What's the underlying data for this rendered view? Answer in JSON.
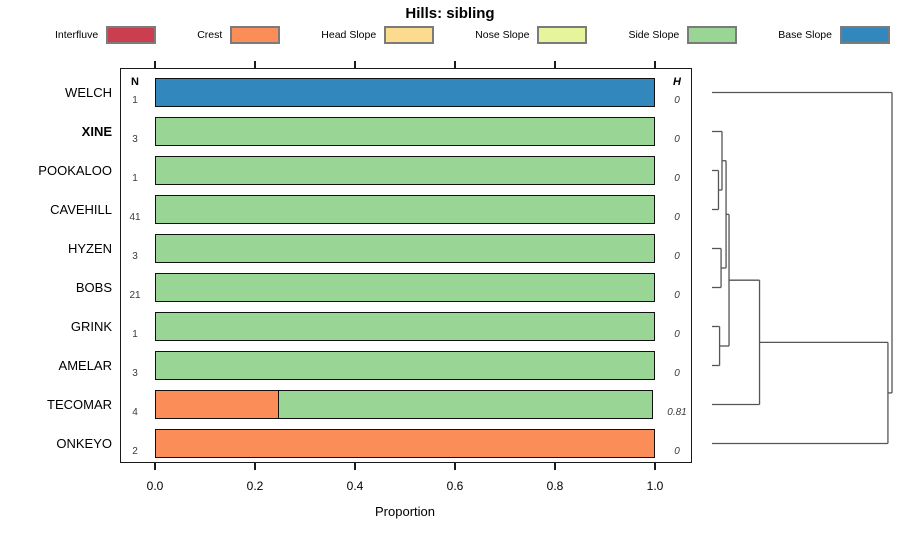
{
  "title": "Hills: sibling",
  "legend": {
    "items": [
      {
        "label": "Interfluve",
        "color": "#CB3E4F"
      },
      {
        "label": "Crest",
        "color": "#FB8D58"
      },
      {
        "label": "Head Slope",
        "color": "#FBDC8E"
      },
      {
        "label": "Nose Slope",
        "color": "#E6F59B"
      },
      {
        "label": "Side Slope",
        "color": "#99D594"
      },
      {
        "label": "Base Slope",
        "color": "#3288BD"
      }
    ]
  },
  "columns": {
    "n_header": "N",
    "h_header": "H"
  },
  "axis": {
    "xlabel": "Proportion",
    "ticks": [
      "0.0",
      "0.2",
      "0.4",
      "0.6",
      "0.8",
      "1.0"
    ],
    "tick_values": [
      0.0,
      0.2,
      0.4,
      0.6,
      0.8,
      1.0
    ],
    "xlim": [
      0.0,
      1.0
    ]
  },
  "rows": [
    {
      "label": "WELCH",
      "bold": false,
      "n": "1",
      "h": "0",
      "segments": [
        {
          "class": "Base Slope",
          "value": 1.0
        }
      ]
    },
    {
      "label": "XINE",
      "bold": true,
      "n": "3",
      "h": "0",
      "segments": [
        {
          "class": "Side Slope",
          "value": 1.0
        }
      ]
    },
    {
      "label": "POOKALOO",
      "bold": false,
      "n": "1",
      "h": "0",
      "segments": [
        {
          "class": "Side Slope",
          "value": 1.0
        }
      ]
    },
    {
      "label": "CAVEHILL",
      "bold": false,
      "n": "41",
      "h": "0",
      "segments": [
        {
          "class": "Side Slope",
          "value": 1.0
        }
      ]
    },
    {
      "label": "HYZEN",
      "bold": false,
      "n": "3",
      "h": "0",
      "segments": [
        {
          "class": "Side Slope",
          "value": 1.0
        }
      ]
    },
    {
      "label": "BOBS",
      "bold": false,
      "n": "21",
      "h": "0",
      "segments": [
        {
          "class": "Side Slope",
          "value": 1.0
        }
      ]
    },
    {
      "label": "GRINK",
      "bold": false,
      "n": "1",
      "h": "0",
      "segments": [
        {
          "class": "Side Slope",
          "value": 1.0
        }
      ]
    },
    {
      "label": "AMELAR",
      "bold": false,
      "n": "3",
      "h": "0",
      "segments": [
        {
          "class": "Side Slope",
          "value": 1.0
        }
      ]
    },
    {
      "label": "TECOMAR",
      "bold": false,
      "n": "4",
      "h": "0.81",
      "segments": [
        {
          "class": "Crest",
          "value": 0.25
        },
        {
          "class": "Side Slope",
          "value": 0.75
        }
      ]
    },
    {
      "label": "ONKEYO",
      "bold": false,
      "n": "2",
      "h": "0",
      "segments": [
        {
          "class": "Crest",
          "value": 1.0
        }
      ]
    }
  ],
  "dendrogram": {
    "leaves": [
      "WELCH",
      "XINE",
      "POOKALOO",
      "CAVEHILL",
      "HYZEN",
      "BOBS",
      "GRINK",
      "AMELAR",
      "TECOMAR",
      "ONKEYO"
    ],
    "merges": [
      {
        "id": "M1",
        "left": "POOKALOO",
        "right": "CAVEHILL",
        "h": 0.035
      },
      {
        "id": "M2",
        "left": "XINE",
        "right": "M1",
        "h": 0.054
      },
      {
        "id": "M3",
        "left": "HYZEN",
        "right": "BOBS",
        "h": 0.049
      },
      {
        "id": "M4",
        "left": "M2",
        "right": "M3",
        "h": 0.076
      },
      {
        "id": "M5",
        "left": "GRINK",
        "right": "AMELAR",
        "h": 0.041
      },
      {
        "id": "M6",
        "left": "M4",
        "right": "M5",
        "h": 0.092
      },
      {
        "id": "M7",
        "left": "M6",
        "right": "TECOMAR",
        "h": 0.257
      },
      {
        "id": "M8",
        "left": "M7",
        "right": "ONKEYO",
        "h": 0.951
      },
      {
        "id": "M9",
        "left": "M8",
        "right": "WELCH",
        "h": 0.973
      }
    ]
  },
  "chart_data": {
    "type": "bar",
    "orientation": "horizontal-stacked",
    "title": "Hills: sibling",
    "xlabel": "Proportion",
    "xlim": [
      0.0,
      1.0
    ],
    "xticks": [
      0.0,
      0.2,
      0.4,
      0.6,
      0.8,
      1.0
    ],
    "categories": [
      "WELCH",
      "XINE",
      "POOKALOO",
      "CAVEHILL",
      "HYZEN",
      "BOBS",
      "GRINK",
      "AMELAR",
      "TECOMAR",
      "ONKEYO"
    ],
    "N": [
      1,
      3,
      1,
      41,
      3,
      21,
      1,
      3,
      4,
      2
    ],
    "H": [
      0,
      0,
      0,
      0,
      0,
      0,
      0,
      0,
      0.81,
      0
    ],
    "series": [
      {
        "name": "Interfluve",
        "color": "#CB3E4F",
        "values": [
          0,
          0,
          0,
          0,
          0,
          0,
          0,
          0,
          0,
          0
        ]
      },
      {
        "name": "Crest",
        "color": "#FB8D58",
        "values": [
          0,
          0,
          0,
          0,
          0,
          0,
          0,
          0,
          0.25,
          1.0
        ]
      },
      {
        "name": "Head Slope",
        "color": "#FBDC8E",
        "values": [
          0,
          0,
          0,
          0,
          0,
          0,
          0,
          0,
          0,
          0
        ]
      },
      {
        "name": "Nose Slope",
        "color": "#E6F59B",
        "values": [
          0,
          0,
          0,
          0,
          0,
          0,
          0,
          0,
          0,
          0
        ]
      },
      {
        "name": "Side Slope",
        "color": "#99D594",
        "values": [
          0,
          1.0,
          1.0,
          1.0,
          1.0,
          1.0,
          1.0,
          1.0,
          0.75,
          0
        ]
      },
      {
        "name": "Base Slope",
        "color": "#3288BD",
        "values": [
          1.0,
          0,
          0,
          0,
          0,
          0,
          0,
          0,
          0,
          0
        ]
      }
    ],
    "legend_position": "top",
    "grid": false,
    "right_annex": "cluster-dendrogram"
  }
}
